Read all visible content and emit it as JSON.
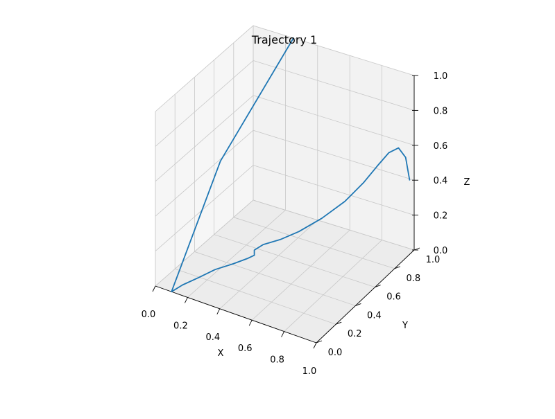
{
  "chart_data": {
    "type": "line",
    "projection": "3d",
    "title": "Trajectory 1",
    "xlabel": "X",
    "ylabel": "Y",
    "zlabel": "Z",
    "xlim": [
      0,
      1
    ],
    "ylim": [
      0,
      1
    ],
    "zlim": [
      0,
      1
    ],
    "x_ticks": [
      "0.0",
      "0.2",
      "0.4",
      "0.6",
      "0.8",
      "1.0"
    ],
    "y_ticks": [
      "0.0",
      "0.2",
      "0.4",
      "0.6",
      "0.8",
      "1.0"
    ],
    "z_ticks": [
      "0.0",
      "0.2",
      "0.4",
      "0.6",
      "0.8",
      "1.0"
    ],
    "grid": true,
    "line_color": "#1f77b4",
    "pane_color": "#f2f2f2",
    "grid_color": "#c8c8c8",
    "series": [
      {
        "x": [
          0.25,
          0.1,
          0.1,
          0.15,
          0.22,
          0.28,
          0.35,
          0.4,
          0.42,
          0.42,
          0.45,
          0.52,
          0.6,
          0.7,
          0.8,
          0.88,
          0.93,
          0.97,
          1.0,
          1.02,
          1.02
        ],
        "y": [
          1.0,
          0.5,
          0.0,
          0.03,
          0.08,
          0.15,
          0.22,
          0.28,
          0.32,
          0.32,
          0.36,
          0.42,
          0.48,
          0.55,
          0.62,
          0.68,
          0.74,
          0.79,
          0.84,
          0.88,
          0.92
        ],
        "z": [
          1.0,
          0.5,
          0.0,
          0.04,
          0.08,
          0.11,
          0.13,
          0.145,
          0.15,
          0.18,
          0.2,
          0.22,
          0.26,
          0.33,
          0.42,
          0.52,
          0.6,
          0.66,
          0.67,
          0.6,
          0.45
        ]
      }
    ]
  }
}
